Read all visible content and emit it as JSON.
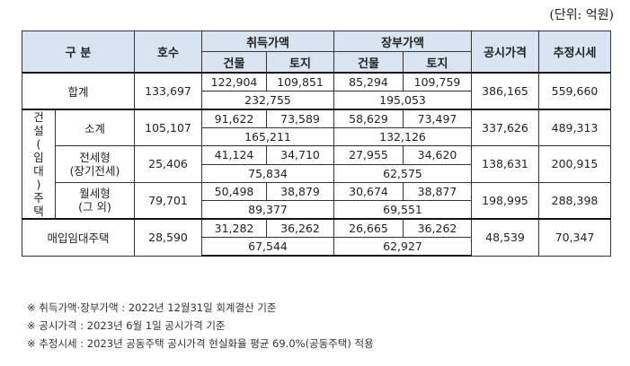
{
  "unit": "(단위: 억원)",
  "headers": {
    "category": "구 분",
    "households": "호수",
    "acquisition": "취득가액",
    "book": "장부가액",
    "building": "건물",
    "land": "토지",
    "official": "공시가격",
    "estimated": "추정시세"
  },
  "side_label_chars": [
    "건",
    "설",
    "(",
    "임",
    "대",
    ")",
    "주",
    "택"
  ],
  "rows": {
    "total": {
      "label": "합계",
      "households": "133,697",
      "acq_building": "122,904",
      "acq_land": "109,851",
      "acq_sum": "232,755",
      "book_building": "85,294",
      "book_land": "109,759",
      "book_sum": "195,053",
      "official": "386,165",
      "estimated": "559,660"
    },
    "subtotal": {
      "label": "소계",
      "households": "105,107",
      "acq_building": "91,622",
      "acq_land": "73,589",
      "acq_sum": "165,211",
      "book_building": "58,629",
      "book_land": "73,497",
      "book_sum": "132,126",
      "official": "337,626",
      "estimated": "489,313"
    },
    "jeonse": {
      "label1": "전세형",
      "label2": "(장기전세)",
      "households": "25,406",
      "acq_building": "41,124",
      "acq_land": "34,710",
      "acq_sum": "75,834",
      "book_building": "27,955",
      "book_land": "34,620",
      "book_sum": "62,575",
      "official": "138,631",
      "estimated": "200,915"
    },
    "monthly": {
      "label1": "월세형",
      "label2": "(그 외)",
      "households": "79,701",
      "acq_building": "50,498",
      "acq_land": "38,879",
      "acq_sum": "89,377",
      "book_building": "30,674",
      "book_land": "38,877",
      "book_sum": "69,551",
      "official": "198,995",
      "estimated": "288,398"
    },
    "purchase": {
      "label": "매입임대주택",
      "households": "28,590",
      "acq_building": "31,282",
      "acq_land": "36,262",
      "acq_sum": "67,544",
      "book_building": "26,665",
      "book_land": "36,262",
      "book_sum": "62,927",
      "official": "48,539",
      "estimated": "70,347"
    }
  },
  "notes": [
    "※ 취득가액·장부가액 : 2022년 12월31일 회계결산 기준",
    "※ 공시가격 : 2023년 6월 1일 공시가격 기준",
    "※ 추정시세 : 2023년 공동주택 공시가격 현실화율 평균 69.0%(공동주택) 적용"
  ]
}
